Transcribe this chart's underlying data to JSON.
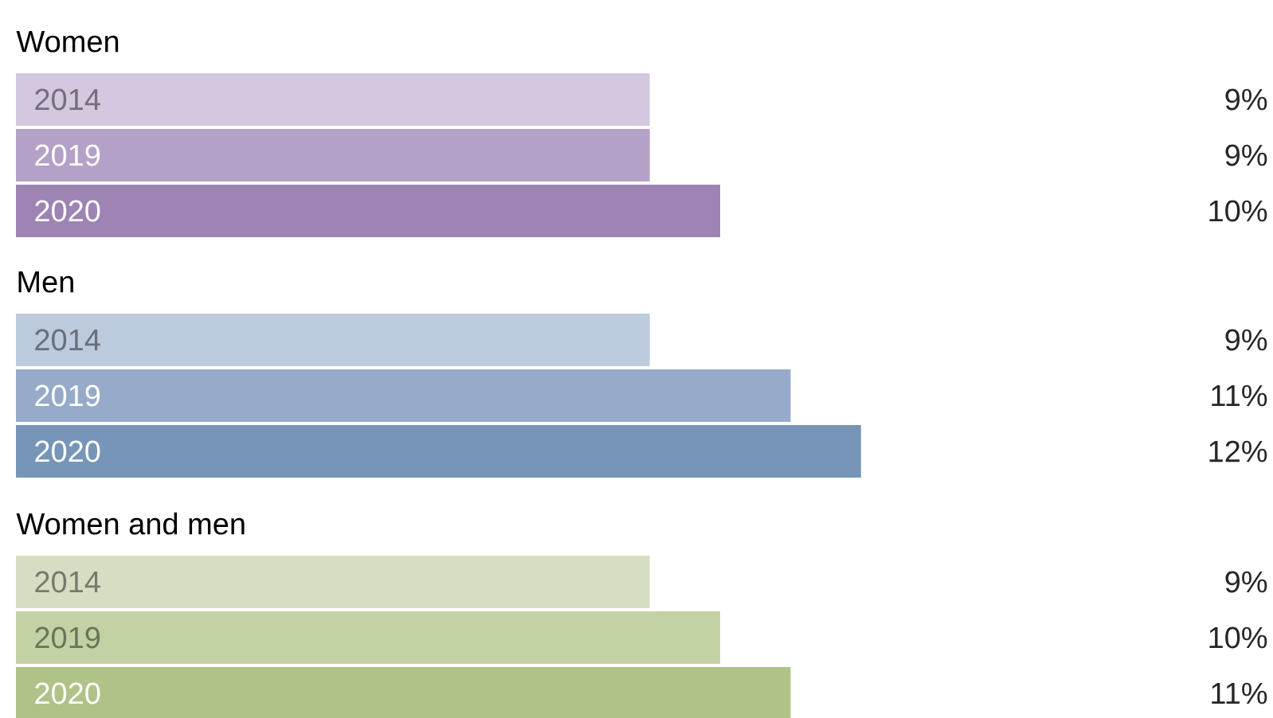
{
  "chart_data": [
    {
      "type": "bar",
      "orientation": "horizontal",
      "title": "Women",
      "categories": [
        "2014",
        "2019",
        "2020"
      ],
      "values": [
        9,
        9,
        10
      ],
      "colors": [
        "#d3c8df",
        "#b4a1c7",
        "#9d84b5"
      ],
      "value_labels": [
        "9%",
        "9%",
        "10%"
      ]
    },
    {
      "type": "bar",
      "orientation": "horizontal",
      "title": "Men",
      "categories": [
        "2014",
        "2019",
        "2020"
      ],
      "values": [
        9,
        11,
        12
      ],
      "colors": [
        "#bccadd",
        "#95abc9",
        "#7795b8"
      ],
      "value_labels": [
        "9%",
        "11%",
        "12%"
      ]
    },
    {
      "type": "bar",
      "orientation": "horizontal",
      "title": "Women and men",
      "categories": [
        "2014",
        "2019",
        "2020"
      ],
      "values": [
        9,
        10,
        11
      ],
      "colors": [
        "#d5dec3",
        "#c3d2a4",
        "#afc388"
      ],
      "value_labels": [
        "9%",
        "10%",
        "11%"
      ]
    }
  ]
}
